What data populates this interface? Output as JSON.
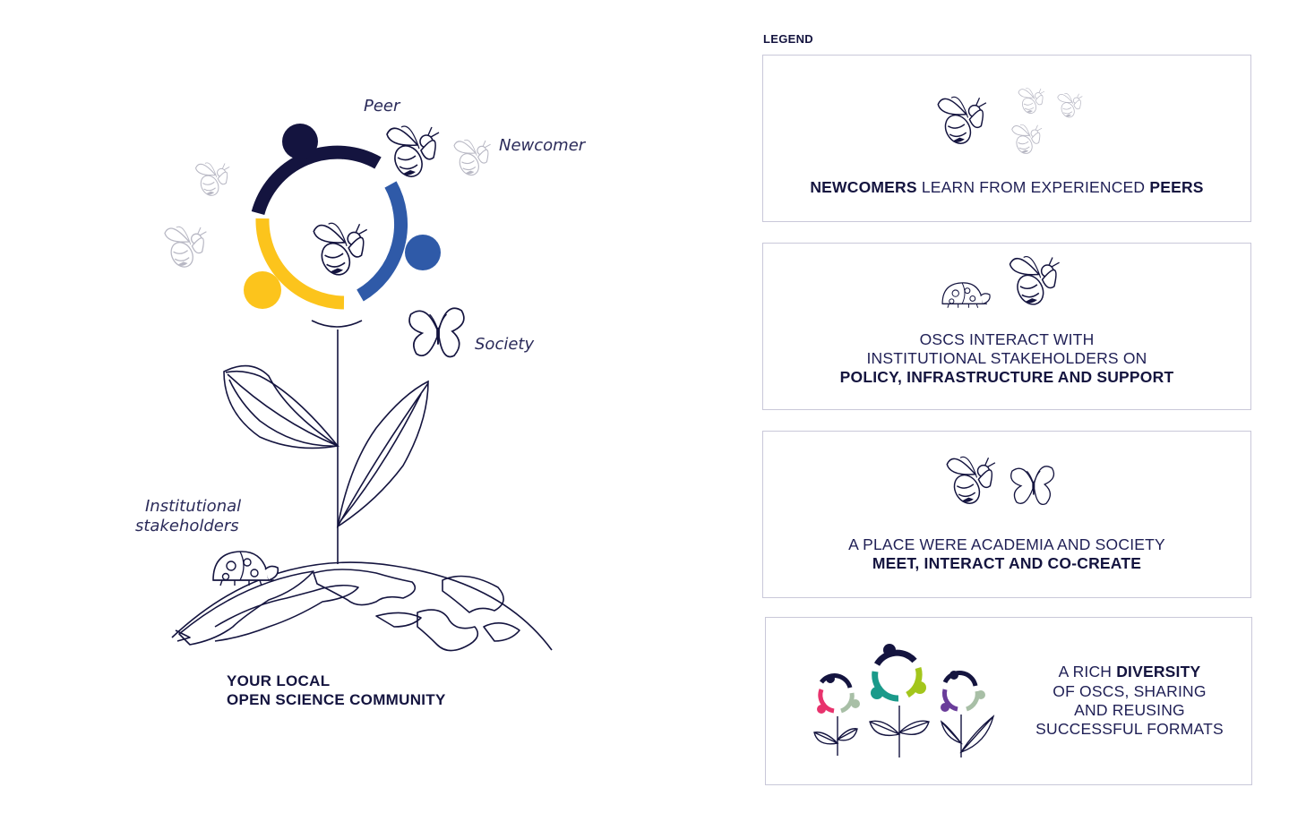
{
  "labels": {
    "peer": "Peer",
    "newcomer": "Newcomer",
    "society": "Society",
    "institutional_line1": "Institutional",
    "institutional_line2": "stakeholders"
  },
  "main_title": {
    "line1": "YOUR LOCAL",
    "line2": "OPEN SCIENCE COMMUNITY"
  },
  "legend": {
    "title": "LEGEND",
    "box1": {
      "bold1": "NEWCOMERS",
      "normal": " LEARN FROM EXPERIENCED ",
      "bold2": "PEERS"
    },
    "box2": {
      "line1": "OSCS INTERACT WITH",
      "line2": "INSTITUTIONAL STAKEHOLDERS ON",
      "line3": "POLICY, INFRASTRUCTURE AND SUPPORT"
    },
    "box3": {
      "line1": "A PLACE WERE ACADEMIA AND SOCIETY",
      "line2": "MEET, INTERACT AND CO-CREATE"
    },
    "box4": {
      "pre": "A RICH ",
      "bold": "DIVERSITY",
      "line2": "OF OSCS, SHARING",
      "line3": "AND REUSING",
      "line4": "SUCCESSFUL FORMATS"
    }
  },
  "colors": {
    "navy": "#14143f",
    "blue": "#2f5aa8",
    "yellow": "#fcc41c",
    "grey_icon": "#b8b8c4",
    "pink": "#e8336d",
    "teal": "#1a9a8a",
    "lime": "#a3c61c",
    "purple": "#6a3d9a",
    "sage": "#a8bfa6"
  },
  "icons": [
    "bee-icon",
    "ladybug-icon",
    "butterfly-icon",
    "globe-icon",
    "leaf-icon",
    "community-ring-icon"
  ]
}
